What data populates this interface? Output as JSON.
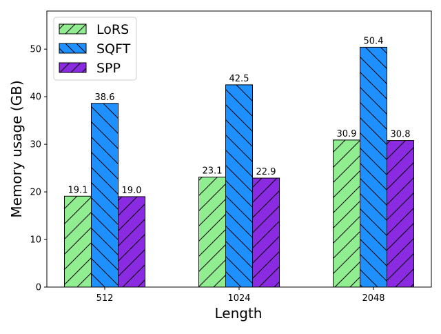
{
  "chart_data": {
    "type": "bar",
    "title": "",
    "xlabel": "Length",
    "ylabel": "Memory usage (GB)",
    "categories": [
      "512",
      "1024",
      "2048"
    ],
    "series": [
      {
        "name": "LoRS",
        "values": [
          19.1,
          23.1,
          30.9
        ],
        "labels": [
          "19.1",
          "23.1",
          "30.9"
        ],
        "color": "#90EE90",
        "hatch": "/"
      },
      {
        "name": "SQFT",
        "values": [
          38.6,
          42.5,
          50.4
        ],
        "labels": [
          "38.6",
          "42.5",
          "50.4"
        ],
        "color": "#1E90FF",
        "hatch": "\\"
      },
      {
        "name": "SPP",
        "values": [
          19.0,
          22.9,
          30.8
        ],
        "labels": [
          "19.0",
          "22.9",
          "30.8"
        ],
        "color": "#8A2BE2",
        "hatch": "/"
      }
    ],
    "ylim": [
      0,
      58
    ],
    "yticks": [
      "0",
      "10",
      "20",
      "30",
      "40",
      "50"
    ],
    "grid": false,
    "legend_position": "top-left"
  }
}
